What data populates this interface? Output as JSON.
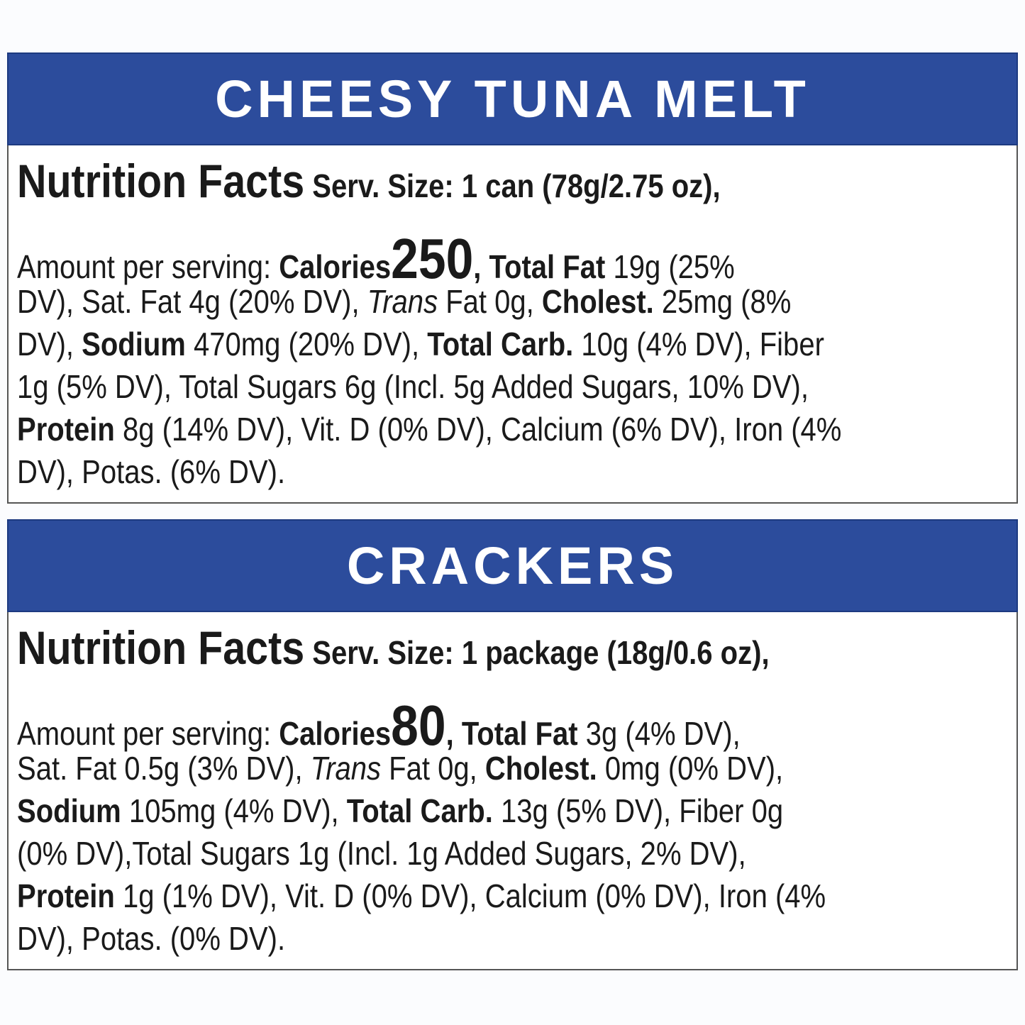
{
  "panels": [
    {
      "title": "CHEESY TUNA MELT",
      "lines": [
        [
          {
            "text": "Nutrition Facts",
            "style": "heading"
          },
          {
            "text": " Serv. Size: 1 can (78g/2.75 oz),",
            "style": "bold"
          }
        ],
        [
          {
            "text": "Amount per serving: "
          },
          {
            "text": "Calories",
            "style": "bold"
          },
          {
            "text": "250",
            "style": "big"
          },
          {
            "text": ", Total Fat",
            "style": "bold"
          },
          {
            "text": " 19g (25%"
          }
        ],
        [
          {
            "text": "DV), Sat. Fat 4g (20% DV), "
          },
          {
            "text": "Trans",
            "style": "italic"
          },
          {
            "text": " Fat 0g, "
          },
          {
            "text": "Cholest.",
            "style": "bold"
          },
          {
            "text": " 25mg (8%"
          }
        ],
        [
          {
            "text": "DV), "
          },
          {
            "text": "Sodium",
            "style": "bold"
          },
          {
            "text": " 470mg (20% DV), "
          },
          {
            "text": "Total Carb.",
            "style": "bold"
          },
          {
            "text": " 10g (4% DV), Fiber"
          }
        ],
        [
          {
            "text": "1g (5% DV), Total Sugars 6g (Incl. 5g Added Sugars, 10% DV),"
          }
        ],
        [
          {
            "text": "Protein",
            "style": "bold"
          },
          {
            "text": " 8g (14% DV), Vit. D (0% DV), Calcium (6% DV), Iron (4%"
          }
        ],
        [
          {
            "text": "DV), Potas. (6% DV)."
          }
        ]
      ]
    },
    {
      "title": "CRACKERS",
      "lines": [
        [
          {
            "text": "Nutrition Facts",
            "style": "heading"
          },
          {
            "text": " Serv. Size: 1 package (18g/0.6 oz),",
            "style": "bold"
          }
        ],
        [
          {
            "text": "Amount per serving: "
          },
          {
            "text": "Calories",
            "style": "bold"
          },
          {
            "text": "80",
            "style": "big"
          },
          {
            "text": ", Total Fat",
            "style": "bold"
          },
          {
            "text": " 3g (4% DV),"
          }
        ],
        [
          {
            "text": "Sat. Fat 0.5g (3% DV), "
          },
          {
            "text": "Trans",
            "style": "italic"
          },
          {
            "text": " Fat 0g, "
          },
          {
            "text": "Cholest.",
            "style": "bold"
          },
          {
            "text": " 0mg (0% DV),"
          }
        ],
        [
          {
            "text": "Sodium",
            "style": "bold"
          },
          {
            "text": " 105mg (4% DV), "
          },
          {
            "text": "Total Carb.",
            "style": "bold"
          },
          {
            "text": " 13g (5% DV), Fiber 0g"
          }
        ],
        [
          {
            "text": "(0% DV),Total Sugars 1g (Incl. 1g Added Sugars, 2% DV),"
          }
        ],
        [
          {
            "text": "Protein",
            "style": "bold"
          },
          {
            "text": " 1g (1% DV), Vit. D (0% DV), Calcium (0% DV), Iron (4%"
          }
        ],
        [
          {
            "text": "DV), Potas. (0% DV)."
          }
        ]
      ]
    }
  ]
}
